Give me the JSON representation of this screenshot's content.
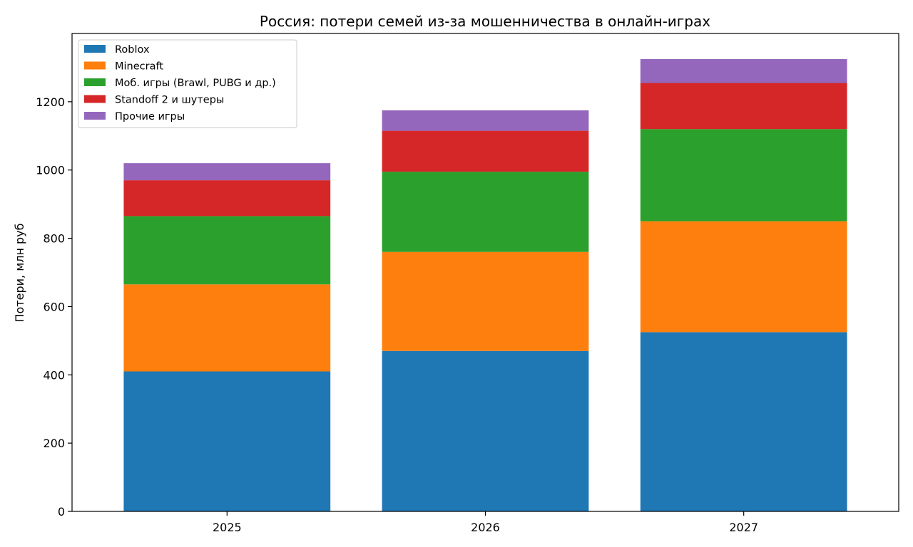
{
  "chart_data": {
    "type": "bar",
    "stacked": true,
    "title": "Россия: потери семей из-за мошенничества в онлайн-играх",
    "xlabel": "",
    "ylabel": "Потери, млн руб",
    "categories": [
      "2025",
      "2026",
      "2027"
    ],
    "series": [
      {
        "name": "Roblox",
        "color": "#1f77b4",
        "values": [
          410,
          470,
          525
        ]
      },
      {
        "name": "Minecraft",
        "color": "#ff7f0e",
        "values": [
          255,
          290,
          325
        ]
      },
      {
        "name": "Моб. игры (Brawl, PUBG и др.)",
        "color": "#2ca02c",
        "values": [
          200,
          235,
          270
        ]
      },
      {
        "name": "Standoff 2 и шутеры",
        "color": "#d62728",
        "values": [
          105,
          120,
          135
        ]
      },
      {
        "name": "Прочие игры",
        "color": "#9467bd",
        "values": [
          50,
          60,
          70
        ]
      }
    ],
    "ylim": [
      0,
      1400
    ],
    "yticks": [
      0,
      200,
      400,
      600,
      800,
      1000,
      1200
    ],
    "grid": false,
    "legend_position": "top-left"
  }
}
